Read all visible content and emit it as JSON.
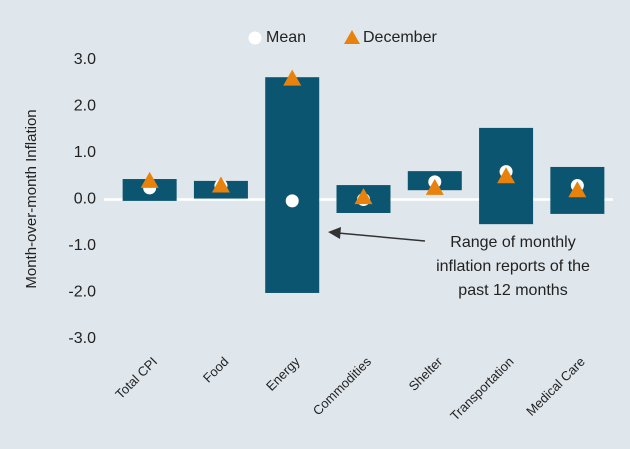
{
  "chart_data": {
    "type": "range",
    "y_axis_label": "Month-over-month Inflation",
    "categories": [
      "Total CPI",
      "Food",
      "Energy",
      "Commodities",
      "Shelter",
      "Transportation",
      "Medical Care"
    ],
    "low": [
      -0.03,
      0.02,
      -2.01,
      -0.29,
      0.2,
      -0.53,
      -0.31
    ],
    "high": [
      0.44,
      0.4,
      2.63,
      0.31,
      0.61,
      1.54,
      0.7
    ],
    "range_color": "#0b5571",
    "series": [
      {
        "name": "Mean",
        "color": "#ffffff",
        "marker": "circle",
        "values": [
          0.25,
          0.3,
          -0.03,
          0.0,
          0.38,
          0.6,
          0.3
        ]
      },
      {
        "name": "December",
        "color": "#e8820c",
        "marker": "triangle",
        "values": [
          0.4,
          0.3,
          2.6,
          0.05,
          0.25,
          0.5,
          0.2
        ]
      }
    ],
    "annotation": [
      "Range of monthly",
      "inflation reports of the",
      "past 12 months"
    ],
    "ylim": [
      -3,
      3
    ],
    "yticks": [
      {
        "value": -3,
        "label": "-3.0"
      },
      {
        "value": -2,
        "label": "-2.0"
      },
      {
        "value": -1,
        "label": "-1.0"
      },
      {
        "value": 0,
        "label": "0.0"
      },
      {
        "value": 1,
        "label": "1.0"
      },
      {
        "value": 2,
        "label": "2.0"
      },
      {
        "value": 3,
        "label": "3.0"
      }
    ],
    "zero_line": true
  }
}
